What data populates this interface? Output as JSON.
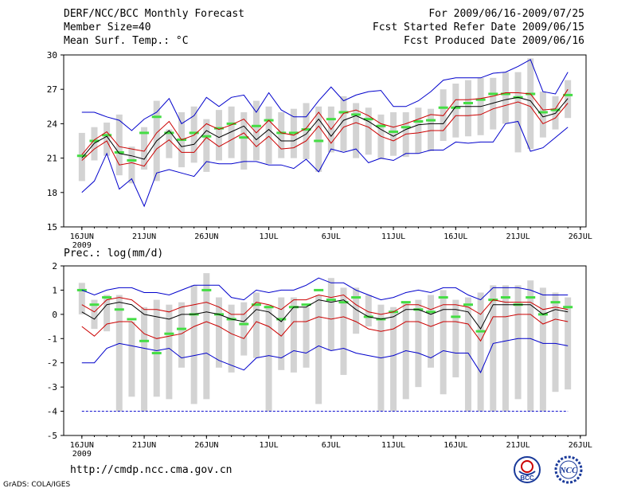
{
  "header": {
    "title": "DERF/NCC/BCC Monthly Forecast",
    "member_size": "Member Size=40",
    "variable": "Mean Surf. Temp.: °C",
    "period": "For 2009/06/16-2009/07/25",
    "refer_date": "Fcst Started Refer Date 2009/06/15",
    "produced_date": "Fcst Produced Date 2009/06/16"
  },
  "footer": {
    "url": "http://cmdp.ncc.cma.gov.cn",
    "grads": "GrADS: COLA/IGES",
    "logo_bcc": "BCC",
    "logo_ncc": "NCC"
  },
  "colors": {
    "box": "#d3d3d3",
    "mean": "#000000",
    "spread": "#cc0000",
    "extreme": "#0000cc",
    "obs": "#44dd44"
  },
  "chart_data": [
    {
      "type": "box-ensemble",
      "title": "Mean Surf. Temp.: °C",
      "x_tick_labels": [
        "16JUN",
        "21JUN",
        "26JUN",
        "1JUL",
        "6JUL",
        "11JUL",
        "16JUL",
        "21JUL",
        "26JUL"
      ],
      "x_year_label": "2009",
      "xlim": [
        0,
        40
      ],
      "ylim": [
        15,
        30
      ],
      "y_ticks": [
        15,
        18,
        21,
        24,
        27,
        30
      ],
      "days": 40,
      "box_low": [
        19.0,
        20.8,
        21.2,
        19.5,
        18.8,
        20.0,
        19.0,
        21.0,
        20.2,
        20.6,
        19.8,
        20.8,
        21.0,
        20.0,
        20.8,
        20.5,
        21.0,
        21.0,
        20.9,
        19.8,
        21.5,
        21.6,
        21.0,
        21.3,
        20.9,
        21.2,
        21.1,
        21.4,
        21.6,
        22.5,
        22.8,
        22.9,
        23.0,
        23.5,
        24.0,
        21.5,
        21.8,
        22.8,
        23.5,
        24.5
      ],
      "box_high": [
        23.2,
        23.7,
        24.1,
        24.8,
        22.0,
        23.7,
        26.0,
        23.5,
        25.0,
        25.5,
        24.4,
        25.2,
        25.5,
        25.0,
        26.0,
        25.5,
        25.0,
        25.3,
        25.8,
        25.5,
        25.5,
        26.4,
        25.8,
        25.4,
        24.8,
        25.0,
        25.0,
        25.4,
        25.3,
        27.0,
        27.5,
        27.8,
        28.0,
        28.0,
        28.5,
        28.5,
        29.7,
        26.8,
        26.4,
        27.8
      ],
      "obs": [
        21.2,
        22.5,
        23.0,
        21.5,
        20.8,
        23.2,
        24.6,
        23.2,
        22.6,
        23.2,
        22.9,
        23.6,
        24.0,
        22.8,
        23.8,
        24.3,
        23.2,
        23.2,
        23.5,
        22.5,
        24.4,
        25.0,
        24.8,
        24.4,
        23.8,
        23.3,
        23.7,
        24.2,
        24.3,
        25.4,
        25.4,
        25.8,
        26.1,
        26.6,
        26.6,
        26.3,
        26.6,
        25.0,
        25.2,
        26.5
      ],
      "series": [
        {
          "name": "max",
          "color": "extreme",
          "values": [
            25.0,
            25.0,
            24.6,
            24.3,
            23.4,
            24.4,
            25.0,
            26.2,
            24.0,
            24.7,
            26.3,
            25.5,
            26.3,
            26.5,
            25.0,
            26.7,
            25.2,
            24.6,
            24.6,
            26.0,
            27.2,
            26.0,
            26.5,
            26.8,
            26.9,
            25.5,
            25.5,
            26.0,
            26.8,
            27.8,
            28.0,
            28.0,
            28.0,
            28.4,
            28.5,
            29.0,
            29.6,
            26.8,
            26.6,
            28.5
          ]
        },
        {
          "name": "upper",
          "color": "spread",
          "values": [
            21.3,
            22.6,
            23.3,
            22.0,
            21.8,
            21.6,
            23.2,
            24.2,
            22.6,
            23.0,
            24.0,
            23.5,
            23.9,
            24.4,
            23.2,
            24.3,
            23.2,
            23.0,
            23.6,
            25.0,
            23.5,
            24.9,
            25.2,
            24.7,
            24.0,
            23.7,
            24.0,
            24.4,
            24.8,
            24.7,
            26.1,
            26.1,
            26.2,
            26.4,
            26.7,
            26.7,
            26.6,
            25.2,
            25.3,
            27.0
          ]
        },
        {
          "name": "mean",
          "color": "mean",
          "values": [
            21.0,
            22.3,
            22.9,
            21.4,
            21.2,
            20.9,
            22.5,
            23.4,
            22.0,
            22.2,
            23.4,
            22.8,
            23.3,
            23.8,
            22.6,
            23.5,
            22.5,
            22.5,
            23.1,
            24.4,
            22.9,
            24.3,
            24.7,
            24.2,
            23.5,
            22.9,
            23.5,
            23.9,
            24.0,
            24.0,
            25.5,
            25.5,
            25.5,
            25.8,
            26.1,
            26.3,
            26.0,
            24.6,
            24.9,
            26.2
          ]
        },
        {
          "name": "lower",
          "color": "spread",
          "values": [
            20.8,
            21.8,
            22.5,
            20.4,
            20.6,
            20.3,
            21.8,
            22.6,
            21.5,
            21.5,
            22.8,
            22.0,
            22.6,
            23.2,
            22.0,
            22.9,
            21.8,
            21.9,
            22.5,
            23.8,
            22.3,
            23.7,
            24.1,
            23.7,
            22.9,
            22.5,
            23.1,
            23.2,
            23.4,
            23.4,
            24.7,
            24.7,
            24.8,
            25.3,
            25.6,
            25.9,
            25.5,
            24.0,
            24.5,
            25.8
          ]
        },
        {
          "name": "min",
          "color": "extreme",
          "values": [
            18.0,
            19.0,
            21.4,
            18.3,
            19.2,
            16.8,
            19.7,
            20.0,
            19.7,
            19.4,
            20.7,
            20.5,
            20.5,
            20.7,
            20.7,
            20.4,
            20.4,
            20.1,
            20.9,
            19.8,
            21.8,
            21.5,
            21.8,
            20.6,
            21.0,
            20.8,
            21.4,
            21.4,
            21.7,
            21.7,
            22.4,
            22.3,
            22.4,
            22.4,
            24.0,
            24.2,
            21.6,
            21.9,
            22.8,
            23.7
          ]
        }
      ]
    },
    {
      "type": "box-ensemble",
      "title": "Prec.: log(mm/d)",
      "x_tick_labels": [
        "16JUN",
        "21JUN",
        "26JUN",
        "1JUL",
        "6JUL",
        "11JUL",
        "16JUL",
        "21JUL",
        "26JUL"
      ],
      "x_year_label": "2009",
      "xlim": [
        0,
        40
      ],
      "ylim": [
        -5,
        2
      ],
      "y_ticks": [
        -5,
        -4,
        -3,
        -2,
        -1,
        0,
        1,
        2
      ],
      "days": 40,
      "box_low": [
        0.0,
        -0.6,
        -0.7,
        -4.0,
        -3.4,
        -4.0,
        -3.4,
        -3.5,
        -2.2,
        -3.7,
        -3.5,
        -2.2,
        -2.4,
        -1.7,
        -1.8,
        -4.0,
        -2.3,
        -2.4,
        -2.2,
        -3.7,
        -1.5,
        -2.5,
        -0.8,
        -0.5,
        -4.0,
        -4.0,
        -3.5,
        -3.0,
        -2.2,
        -3.3,
        -2.6,
        -4.0,
        -4.0,
        -4.0,
        -4.0,
        -3.5,
        -4.0,
        -4.0,
        -3.2,
        -3.1
      ],
      "box_high": [
        1.3,
        0.6,
        0.8,
        0.8,
        -0.3,
        0.3,
        0.6,
        0.4,
        0.5,
        1.2,
        1.7,
        0.7,
        0.4,
        0.5,
        0.9,
        0.4,
        0.7,
        0.7,
        0.3,
        0.8,
        1.5,
        1.1,
        1.1,
        0.8,
        0.4,
        0.3,
        0.5,
        0.6,
        0.8,
        1.0,
        0.6,
        0.7,
        0.9,
        1.2,
        1.2,
        1.2,
        1.4,
        1.1,
        0.9,
        0.7
      ],
      "obs": [
        1.0,
        0.4,
        0.7,
        0.2,
        -0.2,
        -1.1,
        -1.6,
        -0.8,
        -0.6,
        0.0,
        1.0,
        0.0,
        -0.2,
        -0.4,
        0.4,
        0.3,
        -0.2,
        0.3,
        0.4,
        1.0,
        0.6,
        0.5,
        0.7,
        -0.1,
        -0.2,
        0.1,
        0.5,
        0.2,
        0.1,
        0.7,
        -0.1,
        0.4,
        -0.7,
        0.6,
        0.7,
        0.4,
        0.7,
        0.0,
        0.5,
        0.3
      ],
      "series": [
        {
          "name": "max",
          "color": "extreme",
          "values": [
            1.0,
            0.8,
            1.0,
            1.1,
            1.1,
            0.9,
            0.9,
            0.8,
            1.0,
            1.2,
            1.2,
            1.2,
            0.7,
            0.6,
            1.0,
            0.9,
            1.0,
            1.0,
            1.2,
            1.5,
            1.3,
            1.3,
            1.0,
            0.8,
            0.6,
            0.7,
            0.9,
            1.0,
            0.9,
            1.1,
            1.1,
            0.8,
            0.6,
            1.1,
            1.1,
            1.1,
            1.0,
            0.8,
            0.8,
            0.8
          ]
        },
        {
          "name": "upper",
          "color": "spread",
          "values": [
            0.4,
            0.1,
            0.6,
            0.7,
            0.6,
            0.2,
            0.2,
            0.1,
            0.3,
            0.4,
            0.5,
            0.3,
            0.0,
            0.0,
            0.5,
            0.4,
            0.2,
            0.6,
            0.6,
            0.8,
            0.7,
            0.8,
            0.4,
            0.1,
            0.0,
            0.1,
            0.4,
            0.4,
            0.2,
            0.4,
            0.4,
            0.3,
            0.0,
            0.6,
            0.5,
            0.5,
            0.5,
            0.2,
            0.3,
            0.2
          ]
        },
        {
          "name": "mean",
          "color": "mean",
          "values": [
            0.1,
            -0.2,
            0.4,
            0.5,
            0.4,
            0.0,
            -0.1,
            -0.2,
            0.0,
            0.0,
            0.1,
            0.0,
            -0.2,
            -0.3,
            0.2,
            0.1,
            -0.3,
            0.3,
            0.3,
            0.6,
            0.5,
            0.6,
            0.2,
            -0.1,
            -0.2,
            -0.1,
            0.2,
            0.2,
            0.0,
            0.2,
            0.2,
            0.1,
            -0.6,
            0.4,
            0.4,
            0.4,
            0.4,
            0.0,
            0.2,
            0.1
          ]
        },
        {
          "name": "lower",
          "color": "spread",
          "values": [
            -0.5,
            -0.9,
            -0.4,
            -0.3,
            -0.3,
            -0.8,
            -1.0,
            -0.9,
            -0.8,
            -0.5,
            -0.3,
            -0.5,
            -0.8,
            -1.0,
            -0.3,
            -0.5,
            -0.9,
            -0.3,
            -0.3,
            -0.1,
            -0.2,
            -0.1,
            -0.3,
            -0.6,
            -0.7,
            -0.6,
            -0.3,
            -0.3,
            -0.5,
            -0.3,
            -0.3,
            -0.4,
            -1.1,
            -0.1,
            -0.1,
            0.0,
            0.0,
            -0.4,
            -0.2,
            -0.3
          ]
        },
        {
          "name": "min",
          "color": "extreme",
          "values": [
            -2.0,
            -2.0,
            -1.4,
            -1.2,
            -1.3,
            -1.4,
            -1.5,
            -1.4,
            -1.8,
            -1.7,
            -1.6,
            -1.9,
            -2.1,
            -2.3,
            -1.8,
            -1.7,
            -1.8,
            -1.5,
            -1.6,
            -1.3,
            -1.5,
            -1.4,
            -1.6,
            -1.7,
            -1.8,
            -1.7,
            -1.5,
            -1.6,
            -1.8,
            -1.5,
            -1.6,
            -1.6,
            -2.4,
            -1.2,
            -1.1,
            -1.0,
            -1.0,
            -1.2,
            -1.2,
            -1.3
          ]
        },
        {
          "name": "floor",
          "color": "extreme",
          "values": [
            -4.0,
            -4.0,
            -4.0,
            -4.0,
            -4.0,
            -4.0,
            -4.0,
            -4.0,
            -4.0,
            -4.0,
            -4.0,
            -4.0,
            -4.0,
            -4.0,
            -4.0,
            -4.0,
            -4.0,
            -4.0,
            -4.0,
            -4.0,
            -4.0,
            -4.0,
            -4.0,
            -4.0,
            -4.0,
            -4.0,
            -4.0,
            -4.0,
            -4.0,
            -4.0,
            -4.0,
            -4.0,
            -4.0,
            -4.0,
            -4.0,
            -4.0,
            -4.0,
            -4.0,
            -4.0,
            -4.0
          ]
        }
      ]
    }
  ]
}
